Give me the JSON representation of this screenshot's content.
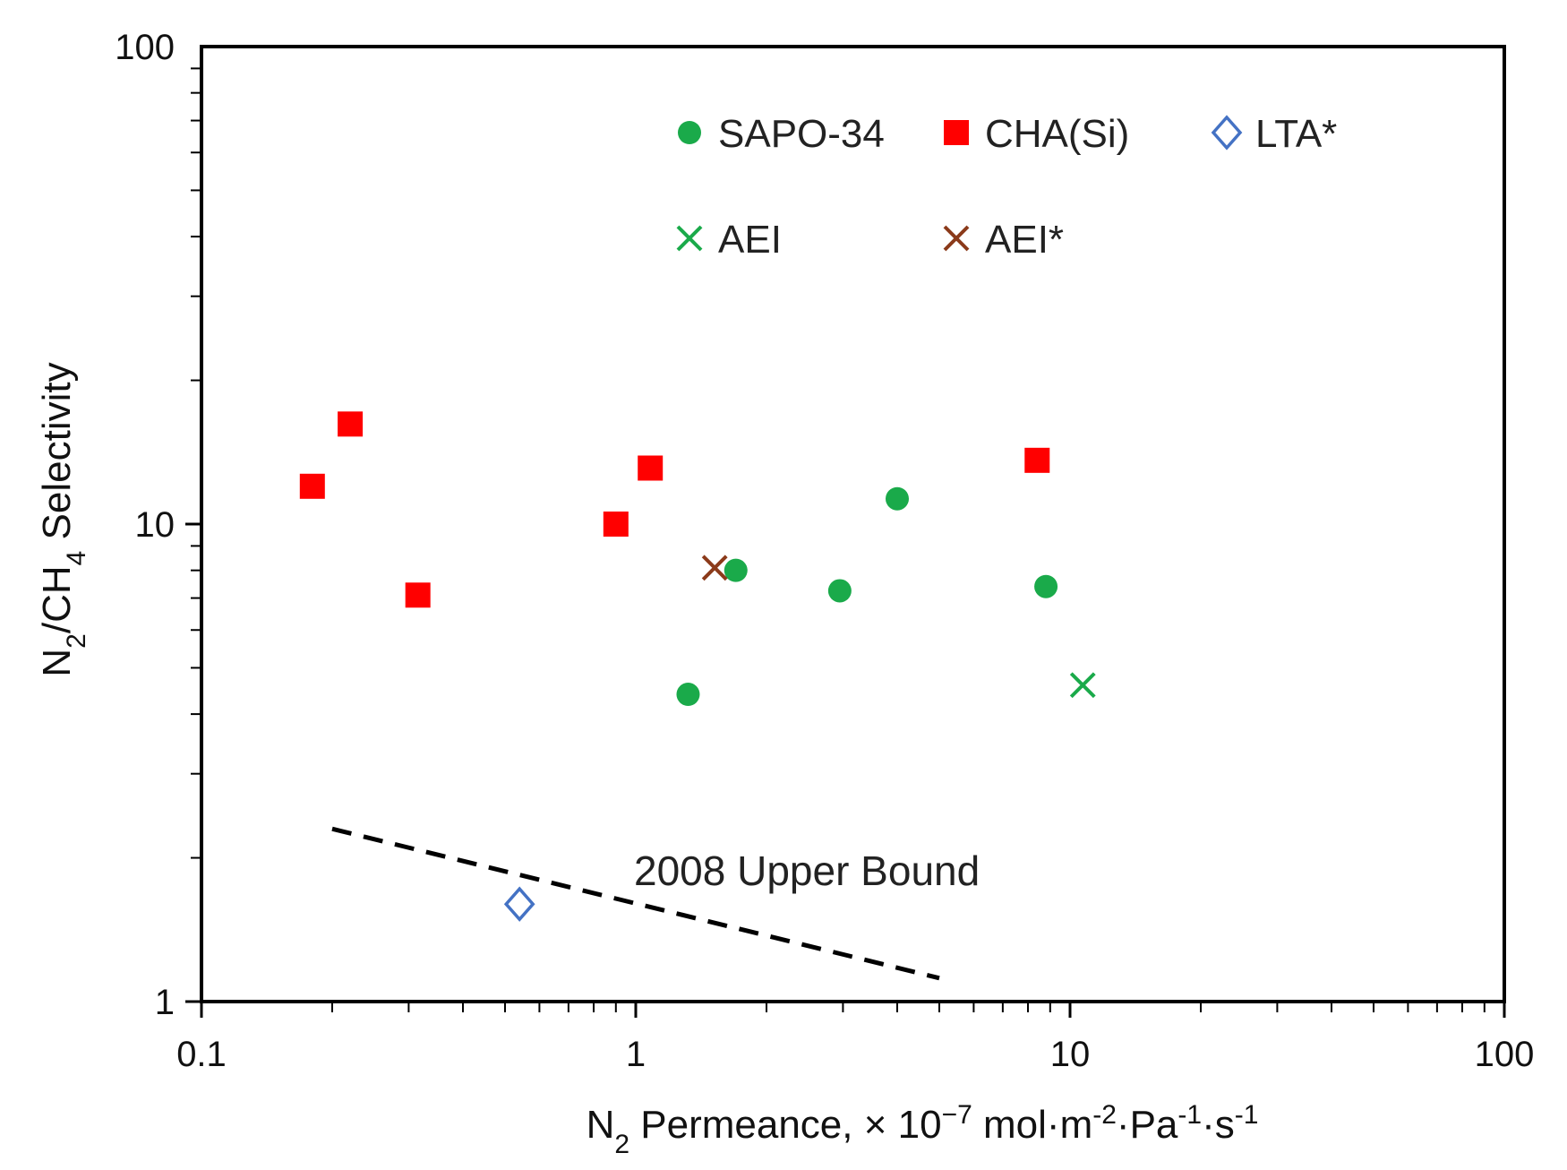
{
  "chart_data": {
    "type": "scatter",
    "title": "",
    "x_scale": "log",
    "y_scale": "log",
    "xlim": [
      0.1,
      100
    ],
    "ylim": [
      1,
      100
    ],
    "xlabel": {
      "main": "N",
      "sub": "2",
      "rest": " Permeance, × 10",
      "exp": "−7",
      "units_a": " mol·m",
      "units_a_exp": "-2",
      "units_b": "·Pa",
      "units_b_exp": "-1",
      "units_c": "·s",
      "units_c_exp": "-1"
    },
    "ylabel": {
      "a": "N",
      "a_sub": "2",
      "b": "/CH",
      "b_sub": "4",
      "c": " Selectivity"
    },
    "x_ticks": [
      0.1,
      1,
      10,
      100
    ],
    "x_tick_labels": [
      "0.1",
      "1",
      "10",
      "100"
    ],
    "y_ticks": [
      1,
      10,
      100
    ],
    "y_tick_labels": [
      "1",
      "10",
      "100"
    ],
    "series": [
      {
        "name": "SAPO-34",
        "marker": "circle",
        "color": "#1aaa4a",
        "points": [
          [
            1.32,
            4.4
          ],
          [
            1.7,
            8.0
          ],
          [
            2.95,
            7.25
          ],
          [
            4.0,
            11.3
          ],
          [
            8.8,
            7.4
          ]
        ]
      },
      {
        "name": "CHA(Si)",
        "marker": "square",
        "color": "#ff0000",
        "points": [
          [
            0.18,
            12.0
          ],
          [
            0.22,
            16.2
          ],
          [
            0.315,
            7.1
          ],
          [
            0.9,
            10.0
          ],
          [
            1.08,
            13.1
          ],
          [
            8.4,
            13.6
          ]
        ]
      },
      {
        "name": "LTA*",
        "marker": "diamond-open",
        "color": "#4472c4",
        "points": [
          [
            0.54,
            1.6
          ]
        ]
      },
      {
        "name": "AEI",
        "marker": "x",
        "color": "#1aaa4a",
        "points": [
          [
            10.7,
            4.6
          ]
        ]
      },
      {
        "name": "AEI*",
        "marker": "x",
        "color": "#8b3a1a",
        "points": [
          [
            1.52,
            8.1
          ]
        ]
      }
    ],
    "upper_bound": {
      "label": "2008 Upper Bound",
      "points": [
        [
          0.2,
          2.3
        ],
        [
          5.0,
          1.12
        ]
      ],
      "style": "dashed",
      "color": "#000000"
    },
    "legend": {
      "position": "top-right",
      "rows": [
        [
          "SAPO-34",
          "CHA(Si)",
          "LTA*"
        ],
        [
          "AEI",
          "AEI*"
        ]
      ]
    }
  }
}
